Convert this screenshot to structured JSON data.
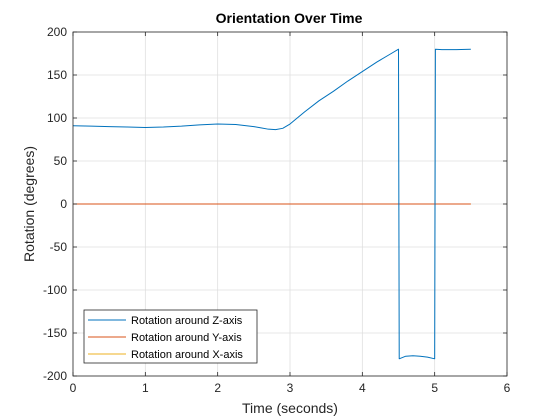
{
  "chart_data": {
    "type": "line",
    "title": "Orientation Over Time",
    "xlabel": "Time (seconds)",
    "ylabel": "Rotation (degrees)",
    "xlim": [
      0,
      6
    ],
    "ylim": [
      -200,
      200
    ],
    "xticks": [
      0,
      1,
      2,
      3,
      4,
      5,
      6
    ],
    "yticks": [
      -200,
      -150,
      -100,
      -50,
      0,
      50,
      100,
      150,
      200
    ],
    "grid": true,
    "legend_position": "bottom-left",
    "series": [
      {
        "name": "Rotation around Z-axis",
        "color": "#0072BD",
        "x": [
          0,
          0.25,
          0.5,
          0.75,
          1.0,
          1.25,
          1.5,
          1.75,
          2.0,
          2.25,
          2.5,
          2.6,
          2.7,
          2.8,
          2.9,
          3.0,
          3.1,
          3.2,
          3.4,
          3.6,
          3.8,
          4.0,
          4.2,
          4.4,
          4.5,
          4.51,
          4.6,
          4.7,
          4.8,
          4.9,
          5.0,
          5.01,
          5.1,
          5.3,
          5.5
        ],
        "y": [
          91,
          90.5,
          90,
          89.5,
          89,
          89.5,
          90.5,
          92,
          93,
          92.5,
          90,
          88.5,
          87,
          86.5,
          88,
          93,
          100,
          107,
          120,
          131,
          143,
          154,
          165,
          175,
          180,
          -180,
          -177,
          -176.5,
          -177,
          -178,
          -180,
          180,
          179.5,
          179.5,
          180
        ]
      },
      {
        "name": "Rotation around Y-axis",
        "color": "#D95319",
        "x": [
          0,
          5.5
        ],
        "y": [
          0,
          0
        ]
      },
      {
        "name": "Rotation around X-axis",
        "color": "#EDB120",
        "x": [
          0,
          5.5
        ],
        "y": [
          0,
          0
        ]
      }
    ]
  }
}
